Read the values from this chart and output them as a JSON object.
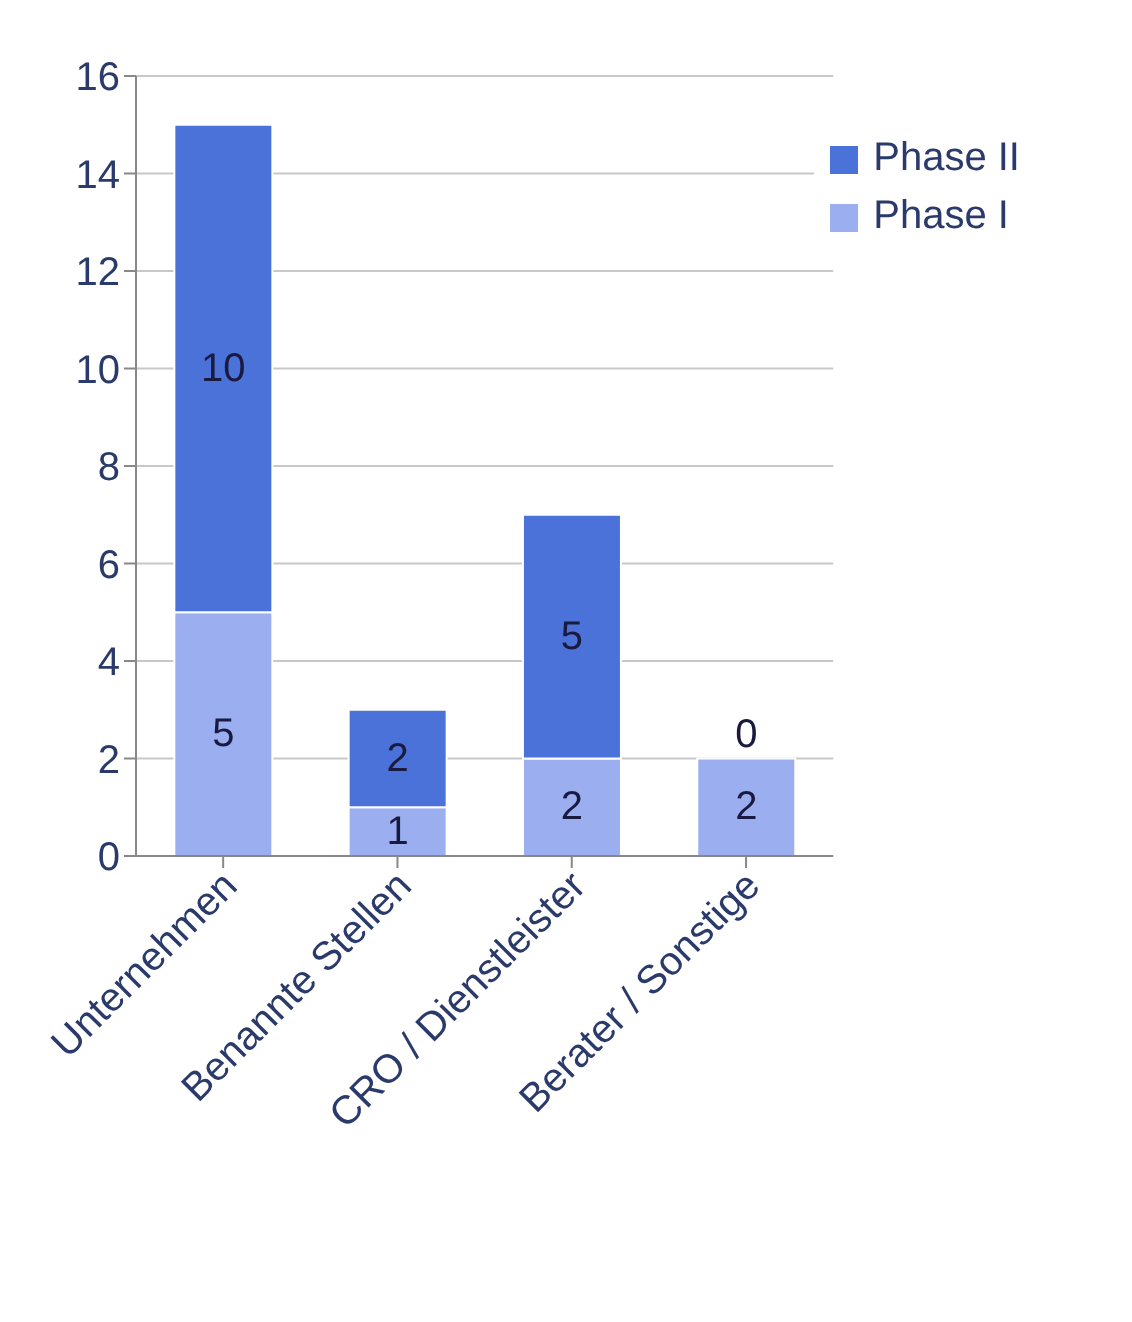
{
  "chart_data": {
    "type": "bar",
    "stacked": true,
    "categories": [
      "Unternehmen",
      "Benannte Stellen",
      "CRO / Dienstleister",
      "Berater / Sonstige"
    ],
    "series": [
      {
        "name": "Phase I",
        "color": "#9aaef0",
        "values": [
          5,
          1,
          2,
          2
        ]
      },
      {
        "name": "Phase II",
        "color": "#4a72d8",
        "values": [
          10,
          2,
          5,
          0
        ]
      }
    ],
    "ylim": [
      0,
      16
    ],
    "yticks": [
      0,
      2,
      4,
      6,
      8,
      10,
      12,
      14,
      16
    ],
    "grid": "y",
    "legend": "top right",
    "data_labels": true
  }
}
